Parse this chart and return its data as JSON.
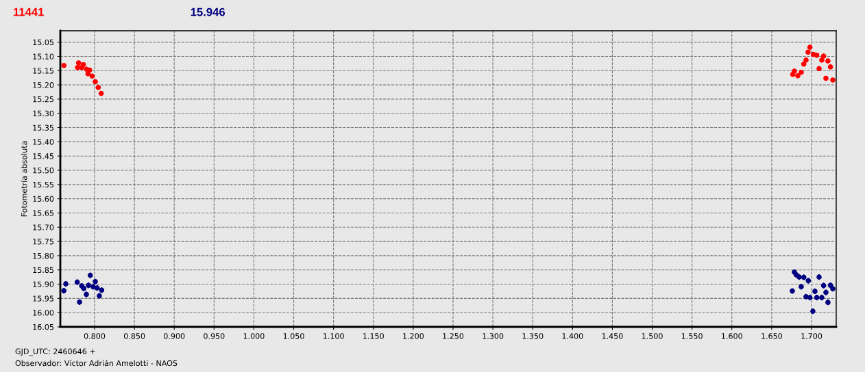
{
  "chart_data": {
    "type": "scatter",
    "ylabel": "Fotometría absoluta",
    "xlabel": "GJD_UTC: 2460646 +",
    "annotations": [
      "Observador: Víctor Adrián Amelotti - NAOS"
    ],
    "series": [
      {
        "name": "11441",
        "color": "#ff0000",
        "x": [
          0.7615,
          0.7787,
          0.78,
          0.7839,
          0.786,
          0.79,
          0.7917,
          0.7937,
          0.797,
          0.8009,
          0.8046,
          0.8083,
          1.6765,
          1.6785,
          1.6828,
          1.6871,
          1.6903,
          1.6931,
          1.6957,
          1.698,
          1.7023,
          1.7066,
          1.7095,
          1.7129,
          1.7152,
          1.7181,
          1.7206,
          1.7238,
          1.7267
        ],
        "values": [
          15.132,
          15.139,
          15.123,
          15.139,
          15.129,
          15.145,
          15.161,
          15.148,
          15.169,
          15.189,
          15.209,
          15.23,
          15.163,
          15.152,
          15.168,
          15.156,
          15.127,
          15.113,
          15.085,
          15.068,
          15.093,
          15.096,
          15.143,
          15.113,
          15.099,
          15.177,
          15.116,
          15.137,
          15.183
        ],
        "errors": [
          0.008,
          0.008,
          0.008,
          0.008,
          0.008,
          0.008,
          0.008,
          0.008,
          0.008,
          0.008,
          0.008,
          0.008,
          0.008,
          0.008,
          0.008,
          0.008,
          0.008,
          0.008,
          0.008,
          0.008,
          0.008,
          0.008,
          0.008,
          0.008,
          0.008,
          0.008,
          0.008,
          0.008,
          0.008
        ]
      },
      {
        "name": "15.946",
        "color": "#000080",
        "x": [
          0.7615,
          0.7639,
          0.7782,
          0.7811,
          0.7839,
          0.7865,
          0.7897,
          0.7923,
          0.7946,
          0.798,
          0.8009,
          0.8032,
          0.806,
          0.8089,
          1.6759,
          1.6785,
          1.6808,
          1.6845,
          1.6871,
          1.6903,
          1.6931,
          1.696,
          1.698,
          1.7017,
          1.7043,
          1.7066,
          1.7095,
          1.7129,
          1.7152,
          1.7181,
          1.7206,
          1.7238,
          1.7267
        ],
        "values": [
          15.923,
          15.899,
          15.893,
          15.963,
          15.906,
          15.915,
          15.936,
          15.904,
          15.869,
          15.909,
          15.891,
          15.913,
          15.941,
          15.921,
          15.924,
          15.858,
          15.867,
          15.875,
          15.909,
          15.876,
          15.944,
          15.888,
          15.947,
          15.995,
          15.925,
          15.947,
          15.875,
          15.947,
          15.905,
          15.929,
          15.964,
          15.904,
          15.916
        ],
        "errors": [
          0.01,
          0.01,
          0.01,
          0.01,
          0.01,
          0.01,
          0.01,
          0.01,
          0.01,
          0.01,
          0.01,
          0.01,
          0.01,
          0.01,
          0.01,
          0.01,
          0.01,
          0.01,
          0.01,
          0.01,
          0.01,
          0.01,
          0.01,
          0.01,
          0.01,
          0.01,
          0.01,
          0.01,
          0.01,
          0.01,
          0.01,
          0.01,
          0.01
        ]
      }
    ],
    "xlim": [
      0.757,
      1.731
    ],
    "xticks": [
      {
        "value": 0.8,
        "label": "0.800"
      },
      {
        "value": 0.85,
        "label": "0.850"
      },
      {
        "value": 0.9,
        "label": "0.900"
      },
      {
        "value": 0.95,
        "label": "0.950"
      },
      {
        "value": 1.0,
        "label": "1.000"
      },
      {
        "value": 1.05,
        "label": "1.050"
      },
      {
        "value": 1.1,
        "label": "1.100"
      },
      {
        "value": 1.15,
        "label": "1.150"
      },
      {
        "value": 1.2,
        "label": "1.200"
      },
      {
        "value": 1.25,
        "label": "1.250"
      },
      {
        "value": 1.3,
        "label": "1.300"
      },
      {
        "value": 1.35,
        "label": "1.350"
      },
      {
        "value": 1.4,
        "label": "1.400"
      },
      {
        "value": 1.45,
        "label": "1.450"
      },
      {
        "value": 1.5,
        "label": "1.500"
      },
      {
        "value": 1.55,
        "label": "1.550"
      },
      {
        "value": 1.6,
        "label": "1.600"
      },
      {
        "value": 1.65,
        "label": "1.650"
      },
      {
        "value": 1.7,
        "label": "1.700"
      }
    ],
    "ylim": [
      16.05,
      15.01
    ],
    "yticks": [
      {
        "value": 15.05,
        "label": "15.05"
      },
      {
        "value": 15.1,
        "label": "15.10"
      },
      {
        "value": 15.15,
        "label": "15.15"
      },
      {
        "value": 15.2,
        "label": "15.20"
      },
      {
        "value": 15.25,
        "label": "15.25"
      },
      {
        "value": 15.3,
        "label": "15.30"
      },
      {
        "value": 15.35,
        "label": "15.35"
      },
      {
        "value": 15.4,
        "label": "15.40"
      },
      {
        "value": 15.45,
        "label": "15.45"
      },
      {
        "value": 15.5,
        "label": "15.50"
      },
      {
        "value": 15.55,
        "label": "15.55"
      },
      {
        "value": 15.6,
        "label": "15.60"
      },
      {
        "value": 15.65,
        "label": "15.65"
      },
      {
        "value": 15.7,
        "label": "15.70"
      },
      {
        "value": 15.75,
        "label": "15.75"
      },
      {
        "value": 15.8,
        "label": "15.80"
      },
      {
        "value": 15.85,
        "label": "15.85"
      },
      {
        "value": 15.9,
        "label": "15.90"
      },
      {
        "value": 15.95,
        "label": "15.95"
      },
      {
        "value": 16.0,
        "label": "16.00"
      },
      {
        "value": 16.05,
        "label": "16.05"
      }
    ],
    "grid": true,
    "legend": false,
    "marker": "circle"
  }
}
